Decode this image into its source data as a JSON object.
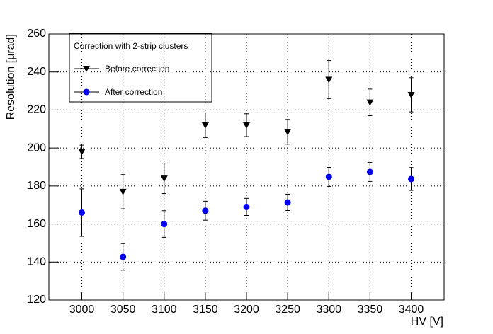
{
  "chart_data": {
    "type": "scatter",
    "xlabel": "HV [V]",
    "ylabel": "Resolution [μrad]",
    "legend_title": "Correction with 2-strip clusters",
    "legend_position": "upper left",
    "grid": true,
    "x": [
      3000,
      3050,
      3100,
      3150,
      3200,
      3250,
      3300,
      3350,
      3400
    ],
    "xlim": [
      2960,
      3440
    ],
    "xticks": [
      3000,
      3050,
      3100,
      3150,
      3200,
      3250,
      3300,
      3350,
      3400
    ],
    "ylim": [
      120,
      260
    ],
    "yticks": [
      120,
      140,
      160,
      180,
      200,
      220,
      240,
      260
    ],
    "series": [
      {
        "name": "Before correction",
        "color": "#000000",
        "marker": "triangle-down",
        "values": [
          198,
          177,
          184,
          212,
          212,
          208.5,
          236,
          224,
          228
        ],
        "errors": [
          3.5,
          9,
          8,
          6.5,
          6,
          6.5,
          10,
          7,
          9
        ]
      },
      {
        "name": "After correction",
        "color": "#0000ee",
        "marker": "circle",
        "values": [
          166,
          142.7,
          160,
          167,
          169,
          171.4,
          184.8,
          187.4,
          183.7
        ],
        "errors": [
          12.5,
          7,
          7,
          5,
          4.5,
          4.3,
          5,
          5,
          6
        ]
      }
    ]
  }
}
